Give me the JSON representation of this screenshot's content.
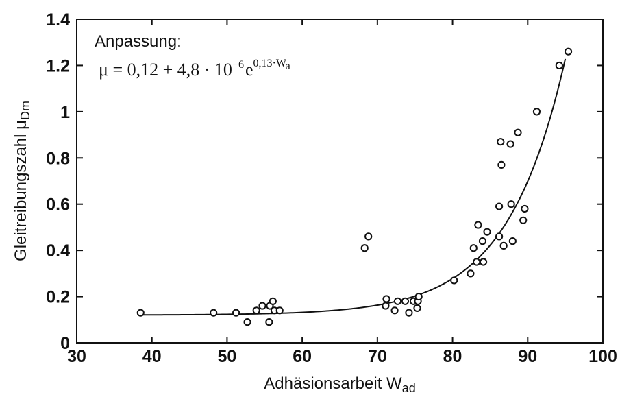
{
  "chart_data": {
    "type": "scatter",
    "xlabel": "Adhäsionsarbeit W",
    "xlabel_sub": "ad",
    "ylabel": "Gleitreibungszahl μ",
    "ylabel_sub": "Dm",
    "xlim": [
      30,
      100
    ],
    "ylim": [
      0,
      1.4
    ],
    "x_ticks": [
      30,
      40,
      50,
      60,
      70,
      80,
      90,
      100
    ],
    "x_tick_labels": [
      "30",
      "40",
      "50",
      "60",
      "70",
      "80",
      "90",
      "100"
    ],
    "y_ticks": [
      0,
      0.2,
      0.4,
      0.6,
      0.8,
      1.0,
      1.2,
      1.4
    ],
    "y_tick_labels": [
      "0",
      "0.2",
      "0.4",
      "0.6",
      "0.8",
      "1",
      "1.2",
      "1.4"
    ],
    "grid": false,
    "annotation": {
      "title": "Anpassung:",
      "formula_main": "μ = 0,12 + 4,8 · 10",
      "formula_exp1": "−6",
      "formula_e": "e",
      "formula_exp2": "0,13·W",
      "formula_exp2_sub": "a"
    },
    "fit": {
      "a": 0.12,
      "b": 4.8e-06,
      "c": 0.13,
      "x_range": [
        38.5,
        95
      ]
    },
    "points": [
      [
        38.5,
        0.13
      ],
      [
        48.2,
        0.13
      ],
      [
        51.2,
        0.13
      ],
      [
        52.7,
        0.09
      ],
      [
        53.9,
        0.14
      ],
      [
        54.7,
        0.16
      ],
      [
        55.6,
        0.09
      ],
      [
        55.7,
        0.16
      ],
      [
        56.1,
        0.18
      ],
      [
        56.3,
        0.14
      ],
      [
        57.0,
        0.14
      ],
      [
        68.3,
        0.41
      ],
      [
        68.8,
        0.46
      ],
      [
        71.1,
        0.16
      ],
      [
        71.2,
        0.19
      ],
      [
        72.3,
        0.14
      ],
      [
        72.7,
        0.18
      ],
      [
        73.7,
        0.18
      ],
      [
        74.2,
        0.13
      ],
      [
        74.8,
        0.18
      ],
      [
        75.3,
        0.15
      ],
      [
        75.4,
        0.18
      ],
      [
        75.5,
        0.2
      ],
      [
        80.2,
        0.27
      ],
      [
        82.4,
        0.3
      ],
      [
        82.8,
        0.41
      ],
      [
        83.2,
        0.35
      ],
      [
        83.4,
        0.51
      ],
      [
        84.0,
        0.44
      ],
      [
        84.1,
        0.35
      ],
      [
        84.6,
        0.48
      ],
      [
        86.2,
        0.46
      ],
      [
        86.2,
        0.59
      ],
      [
        86.4,
        0.87
      ],
      [
        86.5,
        0.77
      ],
      [
        86.8,
        0.42
      ],
      [
        87.7,
        0.86
      ],
      [
        87.8,
        0.6
      ],
      [
        88.0,
        0.44
      ],
      [
        88.7,
        0.91
      ],
      [
        89.4,
        0.53
      ],
      [
        89.6,
        0.58
      ],
      [
        91.2,
        1.0
      ],
      [
        94.2,
        1.2
      ],
      [
        95.4,
        1.26
      ]
    ]
  }
}
